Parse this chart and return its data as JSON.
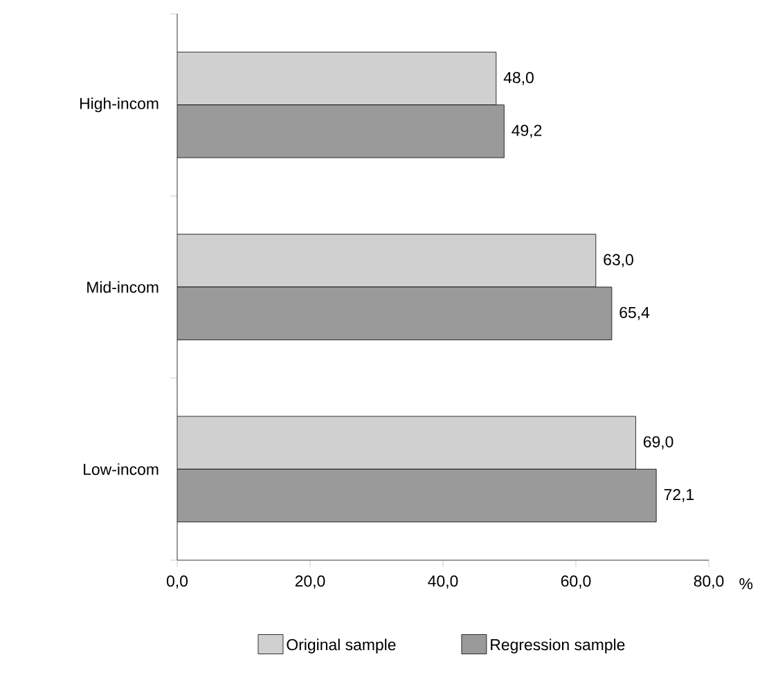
{
  "chart_data": {
    "type": "bar",
    "orientation": "horizontal",
    "xlabel": "%",
    "categories": [
      "High-incom",
      "Mid-incom",
      "Low-incom"
    ],
    "series": [
      {
        "name": "Original sample",
        "color": "#d0d0d0",
        "values": [
          48.0,
          63.0,
          69.0
        ],
        "value_labels": [
          "48,0",
          "63,0",
          "69,0"
        ]
      },
      {
        "name": "Regression sample",
        "color": "#9a9a9a",
        "values": [
          49.2,
          65.4,
          72.1
        ],
        "value_labels": [
          "49,2",
          "65,4",
          "72,1"
        ]
      }
    ],
    "xlim": [
      0,
      80
    ],
    "xticks": [
      {
        "value": 0,
        "label": "0,0"
      },
      {
        "value": 20,
        "label": "20,0"
      },
      {
        "value": 40,
        "label": "40,0"
      },
      {
        "value": 60,
        "label": "60,0"
      },
      {
        "value": 80,
        "label": "80,0"
      }
    ],
    "grid": false,
    "legend": "bottom"
  }
}
